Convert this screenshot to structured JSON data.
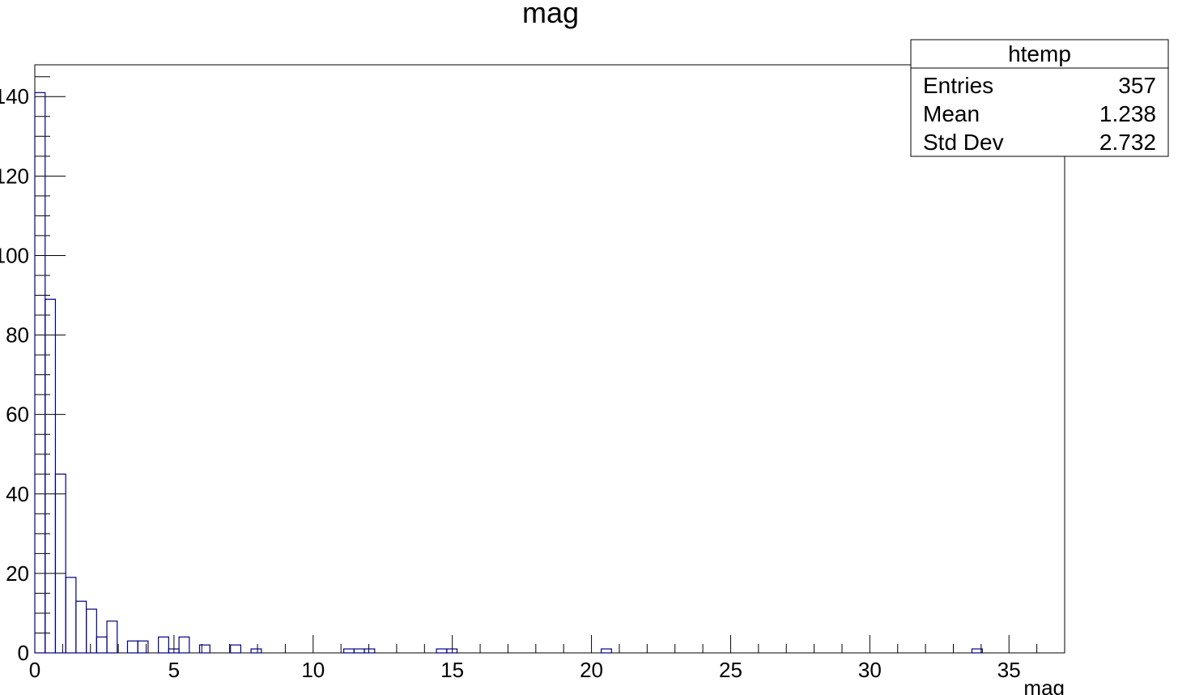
{
  "chart_data": {
    "type": "bar",
    "title": "mag",
    "xlabel": "mag",
    "ylabel": "",
    "xlim": [
      0,
      37
    ],
    "ylim": [
      0,
      148
    ],
    "bin_width": 0.37,
    "bin_start": 0,
    "line_color": "#000080",
    "x_ticks": [
      "0",
      "5",
      "10",
      "15",
      "20",
      "25",
      "30",
      "35"
    ],
    "y_ticks": [
      "0",
      "20",
      "40",
      "60",
      "80",
      "100",
      "120",
      "140"
    ],
    "bins": [
      {
        "x": 0.0,
        "value": 141
      },
      {
        "x": 0.37,
        "value": 89
      },
      {
        "x": 0.74,
        "value": 45
      },
      {
        "x": 1.11,
        "value": 19
      },
      {
        "x": 1.48,
        "value": 13
      },
      {
        "x": 1.85,
        "value": 11
      },
      {
        "x": 2.22,
        "value": 4
      },
      {
        "x": 2.59,
        "value": 8
      },
      {
        "x": 2.96,
        "value": 0
      },
      {
        "x": 3.33,
        "value": 3
      },
      {
        "x": 3.7,
        "value": 3
      },
      {
        "x": 4.07,
        "value": 0
      },
      {
        "x": 4.44,
        "value": 4
      },
      {
        "x": 4.81,
        "value": 1
      },
      {
        "x": 5.18,
        "value": 4
      },
      {
        "x": 5.55,
        "value": 0
      },
      {
        "x": 5.92,
        "value": 2
      },
      {
        "x": 6.29,
        "value": 0
      },
      {
        "x": 6.66,
        "value": 0
      },
      {
        "x": 7.03,
        "value": 2
      },
      {
        "x": 7.4,
        "value": 0
      },
      {
        "x": 7.77,
        "value": 1
      },
      {
        "x": 11.1,
        "value": 1
      },
      {
        "x": 11.47,
        "value": 1
      },
      {
        "x": 11.84,
        "value": 1
      },
      {
        "x": 14.43,
        "value": 1
      },
      {
        "x": 14.8,
        "value": 1
      },
      {
        "x": 20.35,
        "value": 1
      },
      {
        "x": 33.67,
        "value": 1
      }
    ],
    "stats_box": {
      "name": "htemp",
      "rows": [
        {
          "label": "Entries",
          "value": "357"
        },
        {
          "label": "Mean",
          "value": "1.238"
        },
        {
          "label": "Std Dev",
          "value": "2.732"
        }
      ]
    }
  }
}
